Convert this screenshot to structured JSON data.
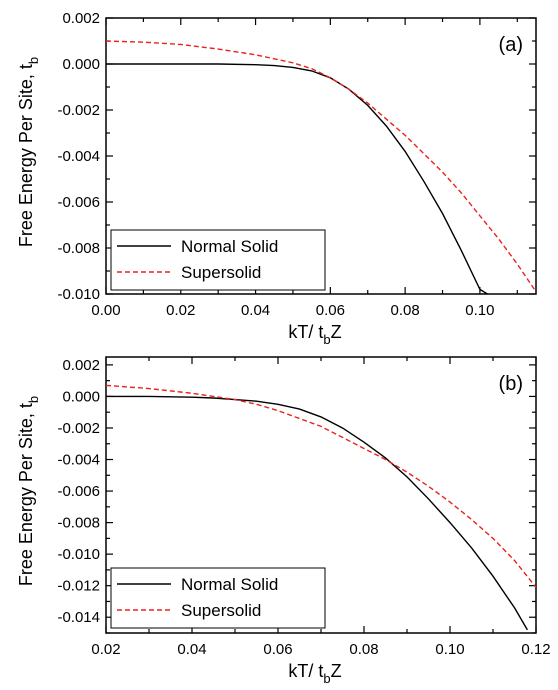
{
  "chart_data": [
    {
      "type": "line",
      "panel_label": "(a)",
      "xlabel": "kT/ t",
      "xlabel_sub": "b",
      "xlabel_tail": "Z",
      "ylabel": "Free Energy Per Site, t",
      "ylabel_sub": "b",
      "xlim": [
        0.0,
        0.115
      ],
      "ylim": [
        -0.01,
        0.002
      ],
      "xticks": [
        0.0,
        0.02,
        0.04,
        0.06,
        0.08,
        0.1
      ],
      "xtick_labels": [
        "0.00",
        "0.02",
        "0.04",
        "0.06",
        "0.08",
        "0.10"
      ],
      "yticks": [
        0.002,
        0.0,
        -0.002,
        -0.004,
        -0.006,
        -0.008,
        -0.01
      ],
      "ytick_labels": [
        "0.002",
        "0.000",
        "-0.002",
        "-0.004",
        "-0.006",
        "-0.008",
        "-0.010"
      ],
      "legend_position": "bottom-left",
      "series": [
        {
          "name": "Normal Solid",
          "color": "#000000",
          "dash": "solid",
          "x": [
            0.0,
            0.01,
            0.02,
            0.03,
            0.04,
            0.045,
            0.05,
            0.055,
            0.06,
            0.065,
            0.07,
            0.075,
            0.08,
            0.085,
            0.09,
            0.095,
            0.1,
            0.105
          ],
          "y": [
            0.0,
            0.0,
            0.0,
            0.0,
            -3e-05,
            -7e-05,
            -0.00015,
            -0.0003,
            -0.0006,
            -0.0011,
            -0.0018,
            -0.0027,
            -0.0038,
            -0.0051,
            -0.0065,
            -0.0081,
            -0.0098,
            -0.0103
          ]
        },
        {
          "name": "Supersolid",
          "color": "#e8231c",
          "dash": "dashed",
          "x": [
            0.0,
            0.01,
            0.02,
            0.03,
            0.04,
            0.05,
            0.055,
            0.06,
            0.065,
            0.07,
            0.075,
            0.08,
            0.085,
            0.09,
            0.095,
            0.1,
            0.105,
            0.11,
            0.115
          ],
          "y": [
            0.001,
            0.00095,
            0.00085,
            0.00065,
            0.0004,
            5e-05,
            -0.0002,
            -0.0006,
            -0.0011,
            -0.0017,
            -0.0024,
            -0.0031,
            -0.0039,
            -0.0047,
            -0.0056,
            -0.0066,
            -0.0076,
            -0.0087,
            -0.0099
          ]
        }
      ]
    },
    {
      "type": "line",
      "panel_label": "(b)",
      "xlabel": "kT/ t",
      "xlabel_sub": "b",
      "xlabel_tail": "Z",
      "ylabel": "Free Energy Per Site, t",
      "ylabel_sub": "b",
      "xlim": [
        0.02,
        0.12
      ],
      "ylim": [
        -0.015,
        0.0025
      ],
      "xticks": [
        0.02,
        0.04,
        0.06,
        0.08,
        0.1,
        0.12
      ],
      "xtick_labels": [
        "0.02",
        "0.04",
        "0.06",
        "0.08",
        "0.10",
        "0.12"
      ],
      "yticks": [
        0.002,
        0.0,
        -0.002,
        -0.004,
        -0.006,
        -0.008,
        -0.01,
        -0.012,
        -0.014
      ],
      "ytick_labels": [
        "0.002",
        "0.000",
        "-0.002",
        "-0.004",
        "-0.006",
        "-0.008",
        "-0.010",
        "-0.012",
        "-0.014"
      ],
      "legend_position": "bottom-left",
      "series": [
        {
          "name": "Normal Solid",
          "color": "#000000",
          "dash": "solid",
          "x": [
            0.02,
            0.03,
            0.04,
            0.045,
            0.05,
            0.055,
            0.06,
            0.065,
            0.07,
            0.075,
            0.08,
            0.085,
            0.09,
            0.095,
            0.1,
            0.105,
            0.11,
            0.115,
            0.118
          ],
          "y": [
            0.0,
            0.0,
            -5e-05,
            -0.0001,
            -0.0002,
            -0.0003,
            -0.0005,
            -0.0008,
            -0.0013,
            -0.002,
            -0.0029,
            -0.0039,
            -0.0051,
            -0.0065,
            -0.008,
            -0.0096,
            -0.0114,
            -0.0134,
            -0.0148
          ]
        },
        {
          "name": "Supersolid",
          "color": "#e8231c",
          "dash": "dashed",
          "x": [
            0.02,
            0.03,
            0.04,
            0.045,
            0.05,
            0.055,
            0.06,
            0.065,
            0.07,
            0.075,
            0.08,
            0.085,
            0.09,
            0.095,
            0.1,
            0.105,
            0.11,
            0.115,
            0.12
          ],
          "y": [
            0.0007,
            0.0005,
            0.0002,
            0.0,
            -0.0002,
            -0.0005,
            -0.0009,
            -0.0014,
            -0.0019,
            -0.0026,
            -0.0033,
            -0.004,
            -0.0048,
            -0.0057,
            -0.0067,
            -0.0078,
            -0.009,
            -0.0104,
            -0.0121
          ]
        }
      ]
    }
  ]
}
